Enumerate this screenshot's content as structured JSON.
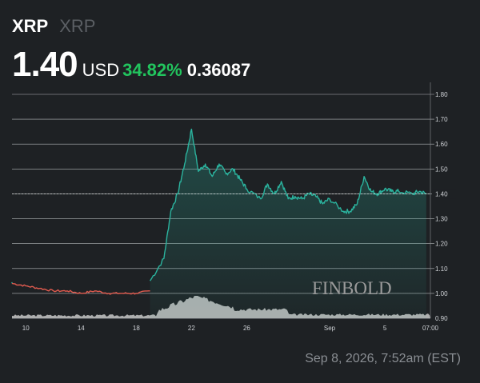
{
  "header": {
    "ticker": "XRP",
    "name": "XRP",
    "price": "1.40",
    "currency": "USD",
    "change_percent": "34.82%",
    "change_abs": "0.36087"
  },
  "timestamp": "Sep 8, 2026, 7:52am (EST)",
  "watermark": "FINBOLD",
  "colors": {
    "background": "#1e2124",
    "up": "#2bb39e",
    "down": "#e05b4f",
    "change_green": "#22c55e",
    "grid": "#d0d3d6"
  },
  "chart_data": {
    "type": "line",
    "title": "",
    "xlabel": "",
    "ylabel": "",
    "ylim": [
      0.9,
      1.8
    ],
    "yticks": [
      "0.90",
      "1.00",
      "1.10",
      "1.20",
      "1.30",
      "1.40",
      "1.50",
      "1.60",
      "1.70",
      "1.80"
    ],
    "xticks": [
      "10",
      "14",
      "18",
      "22",
      "26",
      "Sep",
      "5",
      "07:00"
    ],
    "current_price": 1.4,
    "current_price_label": "1.40",
    "legend": "none",
    "grid": true,
    "volume_shown": true,
    "series": [
      {
        "segment": "down",
        "x": [
          "Aug 9",
          "Aug 10",
          "Aug 11",
          "Aug 12",
          "Aug 13",
          "Aug 14",
          "Aug 15",
          "Aug 16",
          "Aug 17",
          "Aug 18",
          "Aug 19"
        ],
        "values": [
          1.04,
          1.03,
          1.02,
          1.01,
          1.01,
          1.0,
          1.01,
          1.0,
          1.0,
          1.0,
          1.01
        ]
      },
      {
        "segment": "up",
        "x": [
          "Aug 19",
          "Aug 20",
          "Aug 20",
          "Aug 21",
          "Aug 21",
          "Aug 22",
          "Aug 22",
          "Aug 23",
          "Aug 23",
          "Aug 24",
          "Aug 24",
          "Aug 25",
          "Aug 25",
          "Aug 26",
          "Aug 27",
          "Aug 27",
          "Aug 28",
          "Aug 28",
          "Aug 29",
          "Aug 29",
          "Aug 30",
          "Aug 30",
          "Aug 31",
          "Aug 31",
          "Sep 1",
          "Sep 2",
          "Sep 2",
          "Sep 3",
          "Sep 3",
          "Sep 4",
          "Sep 4",
          "Sep 5",
          "Sep 5",
          "Sep 6",
          "Sep 7",
          "Sep 7",
          "Sep 8"
        ],
        "values": [
          1.05,
          1.14,
          1.33,
          1.4,
          1.52,
          1.66,
          1.49,
          1.52,
          1.47,
          1.52,
          1.48,
          1.5,
          1.46,
          1.42,
          1.38,
          1.44,
          1.4,
          1.45,
          1.38,
          1.39,
          1.38,
          1.4,
          1.39,
          1.36,
          1.38,
          1.33,
          1.33,
          1.36,
          1.47,
          1.41,
          1.4,
          1.42,
          1.41,
          1.41,
          1.4,
          1.41,
          1.4
        ]
      }
    ]
  }
}
